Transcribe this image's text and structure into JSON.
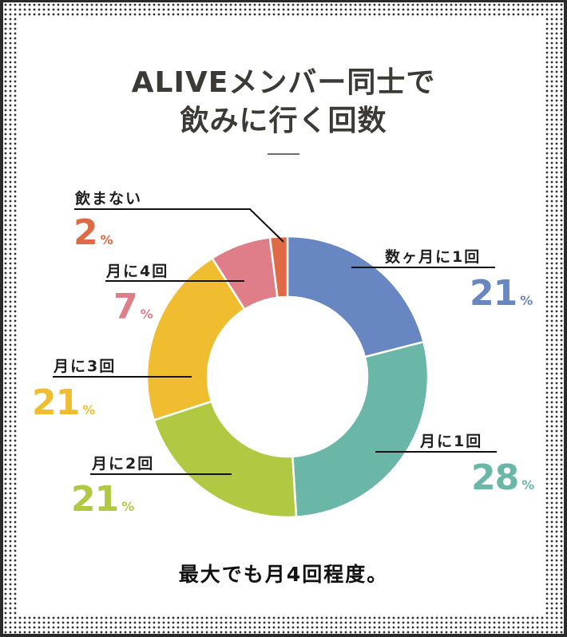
{
  "title": {
    "line1": "ALIVEメンバー同士で",
    "line2": "飲みに行く回数"
  },
  "note": "最大でも月4回程度。",
  "percent_unit": "%",
  "chart_data": {
    "type": "pie",
    "variant": "donut",
    "title": "ALIVEメンバー同士で飲みに行く回数",
    "start_angle_deg": 0,
    "direction": "clockwise",
    "categories": [
      "数ヶ月に1回",
      "月に1回",
      "月に2回",
      "月に3回",
      "月に4回",
      "飲まない"
    ],
    "values": [
      21,
      28,
      21,
      21,
      7,
      2
    ],
    "unit": "%",
    "colors": [
      "#6887c2",
      "#6ab7a8",
      "#b1c942",
      "#f1bd30",
      "#df7d89",
      "#e06a45"
    ],
    "annotation": "最大でも月4回程度。"
  },
  "labels": [
    {
      "text": "数ヶ月に1回",
      "value": "21",
      "color": "#6887c2"
    },
    {
      "text": "月に1回",
      "value": "28",
      "color": "#6ab7a8"
    },
    {
      "text": "月に2回",
      "value": "21",
      "color": "#b1c942"
    },
    {
      "text": "月に3回",
      "value": "21",
      "color": "#f1bd30"
    },
    {
      "text": "月に4回",
      "value": "7",
      "color": "#df7d89"
    },
    {
      "text": "飲まない",
      "value": "2",
      "color": "#e06a45"
    }
  ],
  "colors": {
    "title": "#3b3a36",
    "frame": "#2b2b2b",
    "leader": "#111111"
  }
}
